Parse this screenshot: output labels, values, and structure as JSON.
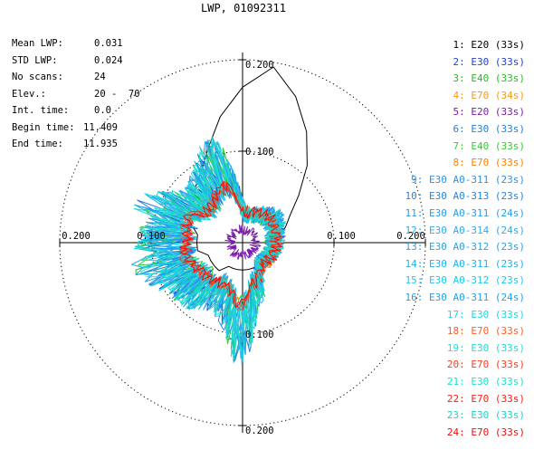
{
  "chart_data": {
    "type": "polar-line",
    "title": "LWP, 01092311",
    "radial_max": 0.2,
    "tick_labels": {
      "top": "0.200",
      "inner_top": "0.100",
      "left": "0.200",
      "inner_left": "0.100",
      "inner_right": "0.100",
      "right": "0.200",
      "inner_bottom": "0.100",
      "bottom": "0.200"
    },
    "rings": [
      0.1,
      0.2
    ],
    "stats": [
      {
        "label": "Mean LWP:",
        "value": "0.031"
      },
      {
        "label": "STD LWP:",
        "value": "0.024"
      },
      {
        "label": "No scans:",
        "value": "24"
      },
      {
        "label": "Elev.:",
        "value": "20 -  70"
      },
      {
        "label": "Int. time:",
        "value": "0.0"
      },
      {
        "label": "Begin time:",
        "value": "11.409"
      },
      {
        "label": "End time:",
        "value": "11.935"
      }
    ],
    "series": [
      {
        "name": "1: E20 (33s)",
        "color": "#000000",
        "r": [
          0.03,
          0.04,
          0.05,
          0.06,
          0.08,
          0.11,
          0.14,
          0.17,
          0.195,
          0.17,
          0.14,
          0.11,
          0.09,
          0.08,
          0.07,
          0.06,
          0.06,
          0.05,
          0.05,
          0.05,
          0.04,
          0.04,
          0.04,
          0.04,
          0.03,
          0.03,
          0.03,
          0.03,
          0.03,
          0.03,
          0.03,
          0.03,
          0.03,
          0.03,
          0.03,
          0.03
        ]
      },
      {
        "name": "2: E30 (33s)",
        "color": "#1f3fd9"
      },
      {
        "name": "3: E40 (33s)",
        "color": "#1fbf1f"
      },
      {
        "name": "4: E70 (34s)",
        "color": "#f29a1a"
      },
      {
        "name": "5: E20 (33s)",
        "color": "#7a1fa8"
      },
      {
        "name": "6: E30 (33s)",
        "color": "#1f7fe0"
      },
      {
        "name": "7: E40 (33s)",
        "color": "#33cc33"
      },
      {
        "name": "8: E70 (33s)",
        "color": "#ff8000"
      },
      {
        "name": "9: E30 A0-311 (23s)",
        "color": "#2f8fe8"
      },
      {
        "name": "10: E30 A0-313 (23s)",
        "color": "#2a82e0"
      },
      {
        "name": "11: E30 A0-311 (24s)",
        "color": "#2a9ae8"
      },
      {
        "name": "12: E30 A0-314 (24s)",
        "color": "#30a8f0"
      },
      {
        "name": "13: E30 A0-312 (23s)",
        "color": "#2aa0e8"
      },
      {
        "name": "14: E30 A0-311 (23s)",
        "color": "#1fb0f0"
      },
      {
        "name": "15: E30 A0-312 (23s)",
        "color": "#1fc8ee"
      },
      {
        "name": "16: E30 A0-311 (24s)",
        "color": "#1fa0f0"
      },
      {
        "name": "17: E30 (33s)",
        "color": "#1fd8e0"
      },
      {
        "name": "18: E70 (33s)",
        "color": "#ff6020"
      },
      {
        "name": "19: E30 (33s)",
        "color": "#1fe0d0"
      },
      {
        "name": "20: E70 (33s)",
        "color": "#ff3a1a"
      },
      {
        "name": "21: E30 (33s)",
        "color": "#1fe0c8"
      },
      {
        "name": "22: E70 (33s)",
        "color": "#ff2010"
      },
      {
        "name": "23: E30 (33s)",
        "color": "#1fd0c8"
      },
      {
        "name": "24: E70 (33s)",
        "color": "#e81010"
      }
    ]
  }
}
